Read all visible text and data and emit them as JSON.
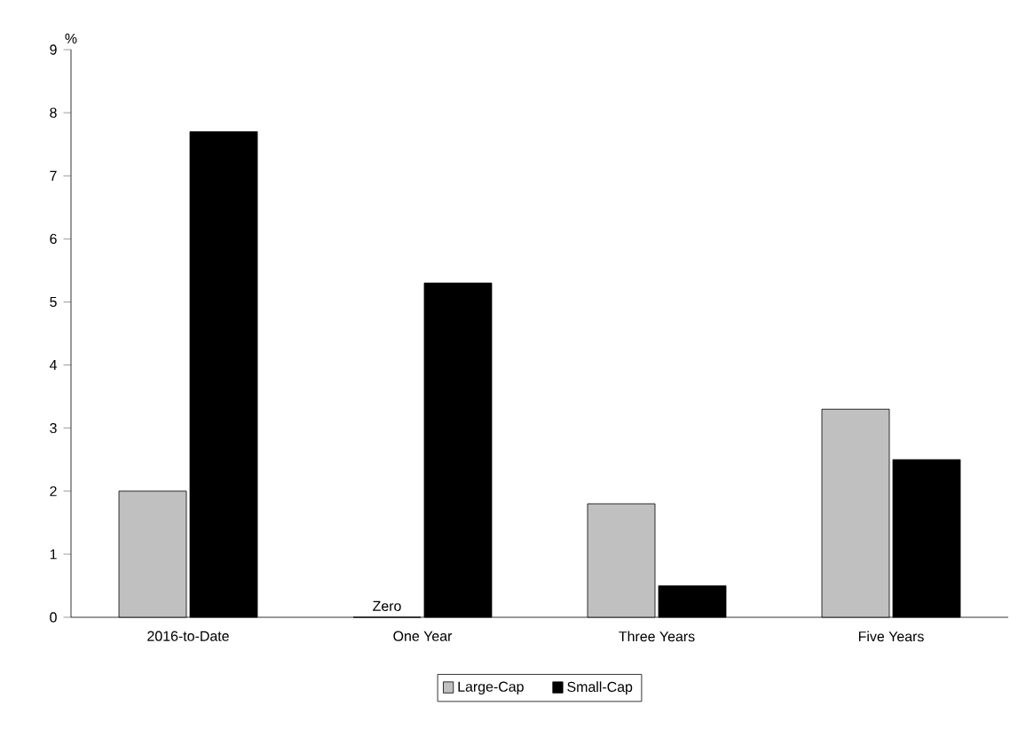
{
  "chart_data": {
    "type": "bar",
    "ylabel": "%",
    "categories": [
      "2016-to-Date",
      "One Year",
      "Three Years",
      "Five Years"
    ],
    "series": [
      {
        "name": "Large-Cap",
        "color": "#c0c0c0",
        "values": [
          2.0,
          0,
          1.8,
          3.3
        ]
      },
      {
        "name": "Small-Cap",
        "color": "#000000",
        "values": [
          7.7,
          5.3,
          0.5,
          2.5
        ]
      }
    ],
    "ylim": [
      0,
      9
    ],
    "yticks": [
      0,
      1,
      2,
      3,
      4,
      5,
      6,
      7,
      8,
      9
    ],
    "grid": false,
    "legend": "bottom",
    "annotations": [
      {
        "text": "Zero",
        "x": "One Year",
        "y": 0
      }
    ]
  }
}
